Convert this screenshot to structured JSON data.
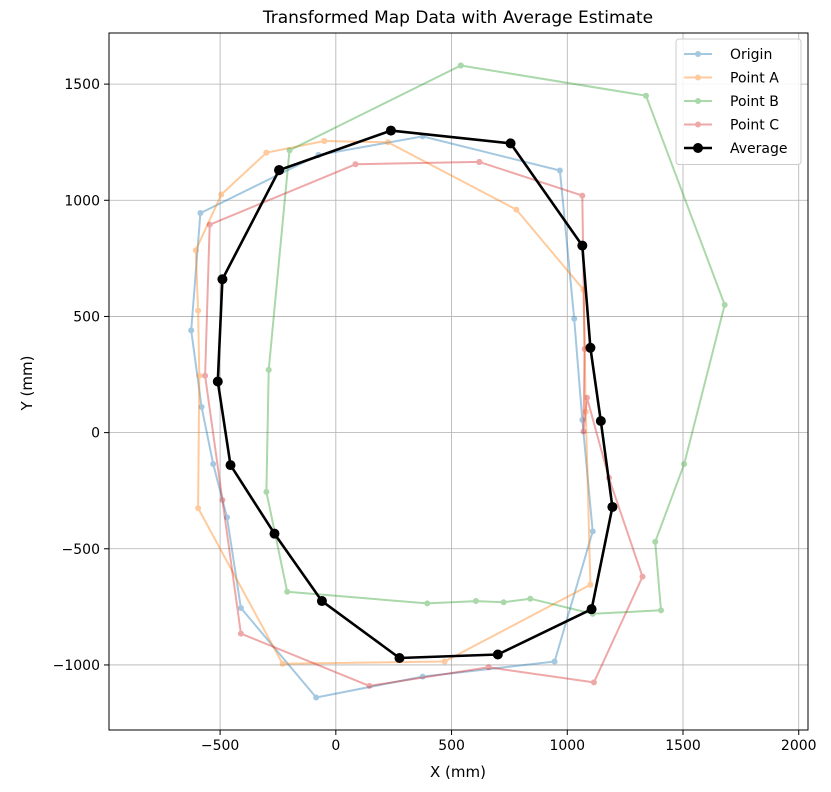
{
  "chart_data": {
    "type": "line",
    "title": "Transformed Map Data with Average Estimate",
    "xlabel": "X (mm)",
    "ylabel": "Y (mm)",
    "xlim": [
      -980,
      2040
    ],
    "ylim": [
      -1280,
      1720
    ],
    "xticks": [
      -500,
      0,
      500,
      1000,
      1500,
      2000
    ],
    "yticks": [
      -1000,
      -500,
      0,
      500,
      1000,
      1500
    ],
    "grid": true,
    "legend_position": "top-right",
    "series": [
      {
        "name": "Origin",
        "color": "#1f77b4",
        "alpha": 0.4,
        "marker": "circle",
        "points": [
          [
            -75,
            1195
          ],
          [
            375,
            1275
          ],
          [
            968,
            1128
          ],
          [
            1030,
            490
          ],
          [
            1065,
            55
          ],
          [
            1110,
            -425
          ],
          [
            945,
            -985
          ],
          [
            375,
            -1050
          ],
          [
            -85,
            -1140
          ],
          [
            -410,
            -755
          ],
          [
            -470,
            -365
          ],
          [
            -530,
            -135
          ],
          [
            -580,
            110
          ],
          [
            -625,
            440
          ],
          [
            -585,
            945
          ],
          [
            -75,
            1195
          ]
        ]
      },
      {
        "name": "Point A",
        "color": "#ff7f0e",
        "alpha": 0.4,
        "marker": "circle",
        "points": [
          [
            -50,
            1255
          ],
          [
            225,
            1250
          ],
          [
            780,
            960
          ],
          [
            1070,
            615
          ],
          [
            1080,
            90
          ],
          [
            1100,
            -655
          ],
          [
            470,
            -985
          ],
          [
            -230,
            -995
          ],
          [
            -595,
            -325
          ],
          [
            -590,
            245
          ],
          [
            -595,
            525
          ],
          [
            -605,
            785
          ],
          [
            -495,
            1025
          ],
          [
            -300,
            1205
          ],
          [
            -50,
            1255
          ]
        ]
      },
      {
        "name": "Point B",
        "color": "#2ca02c",
        "alpha": 0.4,
        "marker": "circle",
        "points": [
          [
            540,
            1580
          ],
          [
            1340,
            1450
          ],
          [
            1680,
            550
          ],
          [
            1505,
            -135
          ],
          [
            1380,
            -470
          ],
          [
            1405,
            -765
          ],
          [
            1110,
            -780
          ],
          [
            840,
            -715
          ],
          [
            725,
            -730
          ],
          [
            605,
            -725
          ],
          [
            395,
            -735
          ],
          [
            -210,
            -685
          ],
          [
            -300,
            -255
          ],
          [
            -290,
            270
          ],
          [
            -200,
            1215
          ],
          [
            540,
            1580
          ]
        ]
      },
      {
        "name": "Point C",
        "color": "#d62728",
        "alpha": 0.4,
        "marker": "circle",
        "points": [
          [
            620,
            1165
          ],
          [
            85,
            1155
          ],
          [
            -545,
            895
          ],
          [
            -565,
            245
          ],
          [
            -490,
            -290
          ],
          [
            -410,
            -865
          ],
          [
            145,
            -1090
          ],
          [
            660,
            -1010
          ],
          [
            1115,
            -1075
          ],
          [
            1325,
            -620
          ],
          [
            1180,
            -195
          ],
          [
            1085,
            150
          ],
          [
            1070,
            5
          ],
          [
            1075,
            360
          ],
          [
            1065,
            1020
          ],
          [
            620,
            1165
          ]
        ]
      },
      {
        "name": "Average",
        "color": "#000000",
        "alpha": 1.0,
        "marker": "circle",
        "points": [
          [
            -245,
            1130
          ],
          [
            238,
            1300
          ],
          [
            755,
            1245
          ],
          [
            1065,
            805
          ],
          [
            1100,
            365
          ],
          [
            1145,
            50
          ],
          [
            1195,
            -320
          ],
          [
            1105,
            -760
          ],
          [
            700,
            -955
          ],
          [
            275,
            -970
          ],
          [
            -60,
            -725
          ],
          [
            -265,
            -435
          ],
          [
            -455,
            -140
          ],
          [
            -510,
            220
          ],
          [
            -490,
            660
          ],
          [
            -245,
            1130
          ]
        ]
      }
    ]
  }
}
